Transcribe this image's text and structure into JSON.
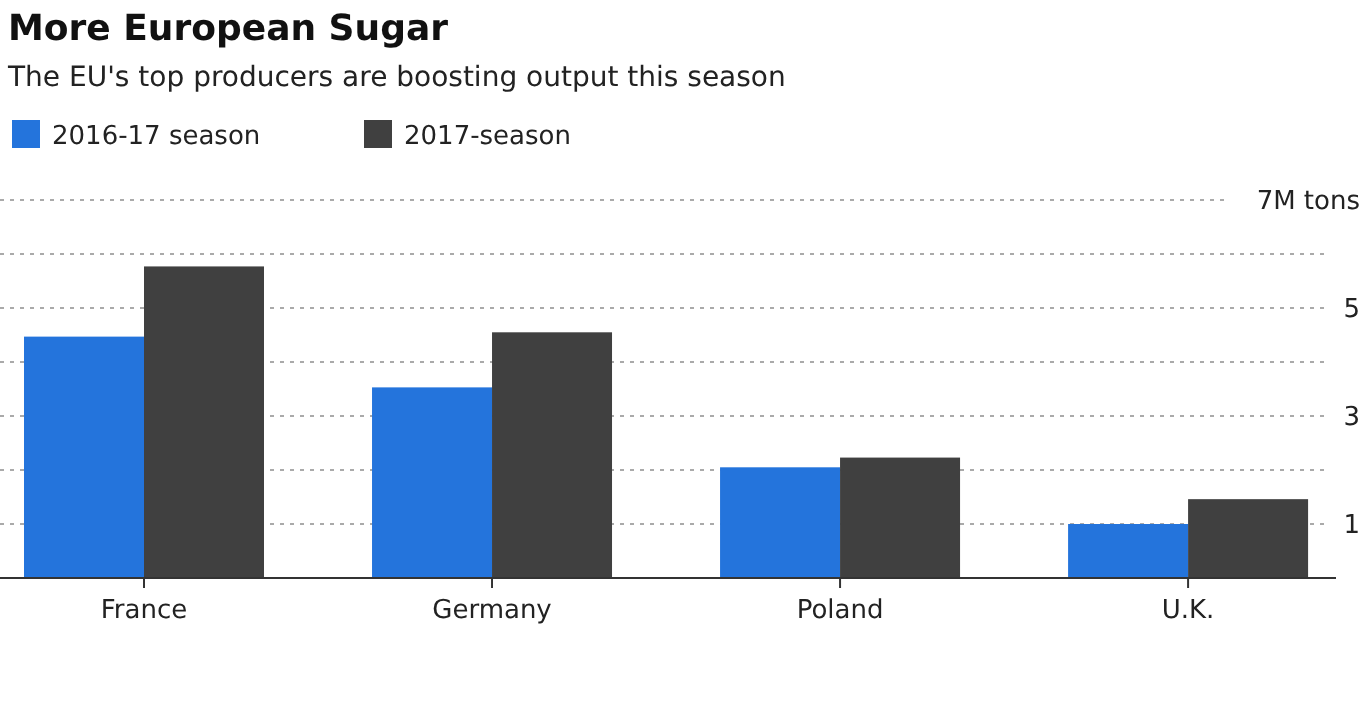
{
  "chart_data": {
    "type": "bar",
    "title": "More European Sugar",
    "subtitle": "The EU's top producers are boosting output this season",
    "categories": [
      "France",
      "Germany",
      "Poland",
      "U.K."
    ],
    "series": [
      {
        "name": "2016-17 season",
        "color": "#2474dc",
        "values": [
          4.47,
          3.53,
          2.05,
          1.0
        ]
      },
      {
        "name": "2017-season",
        "color": "#404040",
        "values": [
          5.77,
          4.55,
          2.23,
          1.46
        ]
      }
    ],
    "ylim": [
      0,
      7
    ],
    "yticks": [
      {
        "value": 0,
        "label": null
      },
      1,
      {
        "value": 2,
        "label": null
      },
      3,
      {
        "value": 4,
        "label": null
      },
      5,
      {
        "value": 6,
        "label": null
      },
      {
        "value": 7,
        "label": "7M tons"
      }
    ],
    "grid": "y",
    "legend": "top left"
  }
}
